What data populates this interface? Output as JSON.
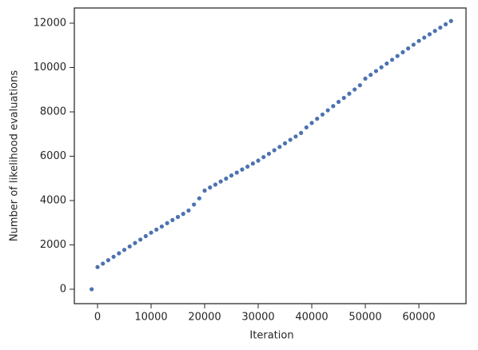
{
  "chart_data": {
    "type": "scatter",
    "xlabel": "Iteration",
    "ylabel": "Number of likelihood evaluations",
    "color": "#4c72b0",
    "x": [
      -1100,
      0,
      1000,
      2000,
      3000,
      4000,
      5000,
      6000,
      7000,
      8000,
      9000,
      10000,
      11000,
      12000,
      13000,
      14000,
      15000,
      16000,
      17000,
      18000,
      19000,
      20000,
      21000,
      22000,
      23000,
      24000,
      25000,
      26000,
      27000,
      28000,
      29000,
      30000,
      31000,
      32000,
      33000,
      34000,
      35000,
      36000,
      37000,
      38000,
      39000,
      40000,
      41000,
      42000,
      43000,
      44000,
      45000,
      46000,
      47000,
      48000,
      49000,
      50000,
      51000,
      52000,
      53000,
      54000,
      55000,
      56000,
      57000,
      58000,
      59000,
      60000,
      61000,
      62000,
      63000,
      64000,
      65000,
      66000
    ],
    "values": [
      0,
      1000,
      1155,
      1310,
      1465,
      1620,
      1775,
      1930,
      2085,
      2240,
      2395,
      2550,
      2690,
      2830,
      2980,
      3120,
      3260,
      3400,
      3550,
      3820,
      4100,
      4450,
      4590,
      4720,
      4860,
      4990,
      5130,
      5260,
      5400,
      5530,
      5670,
      5800,
      5960,
      6110,
      6270,
      6420,
      6580,
      6740,
      6890,
      7050,
      7300,
      7500,
      7690,
      7880,
      8070,
      8260,
      8450,
      8630,
      8820,
      9010,
      9200,
      9500,
      9670,
      9840,
      10010,
      10180,
      10350,
      10520,
      10690,
      10860,
      11030,
      11200,
      11350,
      11500,
      11650,
      11800,
      11950,
      12100
    ],
    "xlim": [
      -4330,
      68800
    ],
    "ylim": [
      -650,
      12685
    ],
    "xticks": [
      0,
      10000,
      20000,
      30000,
      40000,
      50000,
      60000
    ],
    "yticks": [
      0,
      2000,
      4000,
      6000,
      8000,
      10000,
      12000
    ]
  }
}
